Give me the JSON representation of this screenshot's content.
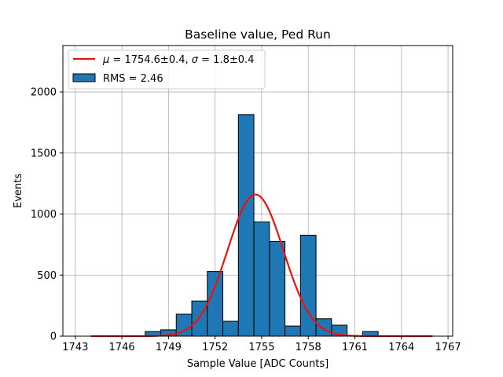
{
  "chart_data": {
    "type": "bar",
    "title": "Baseline value, Ped Run",
    "xlabel": "Sample Value [ADC Counts]",
    "ylabel": "Events",
    "xlim": [
      1742.2,
      1767.3
    ],
    "ylim": [
      0,
      2380
    ],
    "xticks": [
      1743,
      1746,
      1749,
      1752,
      1755,
      1758,
      1761,
      1764,
      1767
    ],
    "yticks": [
      0,
      500,
      1000,
      1500,
      2000
    ],
    "grid": true,
    "legend_position": "top-left",
    "histogram": {
      "name": "RMS = 2.46",
      "bin_width": 1,
      "bins": [
        {
          "left": 1747.5,
          "count": 38
        },
        {
          "left": 1748.5,
          "count": 52
        },
        {
          "left": 1749.5,
          "count": 180
        },
        {
          "left": 1750.5,
          "count": 288
        },
        {
          "left": 1751.5,
          "count": 530
        },
        {
          "left": 1752.5,
          "count": 122
        },
        {
          "left": 1753.5,
          "count": 1815
        },
        {
          "left": 1754.5,
          "count": 935
        },
        {
          "left": 1755.5,
          "count": 775
        },
        {
          "left": 1756.5,
          "count": 83
        },
        {
          "left": 1757.5,
          "count": 827
        },
        {
          "left": 1758.5,
          "count": 143
        },
        {
          "left": 1759.5,
          "count": 90
        },
        {
          "left": 1761.5,
          "count": 38
        }
      ]
    },
    "fit": {
      "name": "μ = 1754.6±0.4, σ = 1.8±0.4",
      "type": "gaussian",
      "mu": 1754.6,
      "sigma": 1.8,
      "amplitude": 1160,
      "x_range": [
        1744,
        1766
      ]
    }
  },
  "colors": {
    "bar_fill": "#1f77b4",
    "bar_edge": "#000000",
    "fit_line": "#ee1111",
    "grid": "#b0b0b0"
  },
  "legend": {
    "fit_mu_symbol": "μ",
    "fit_mu_value": " = 1754.6±0.4, ",
    "fit_sigma_symbol": "σ",
    "fit_sigma_value": " = 1.8±0.4",
    "hist_label": "RMS = 2.46"
  }
}
